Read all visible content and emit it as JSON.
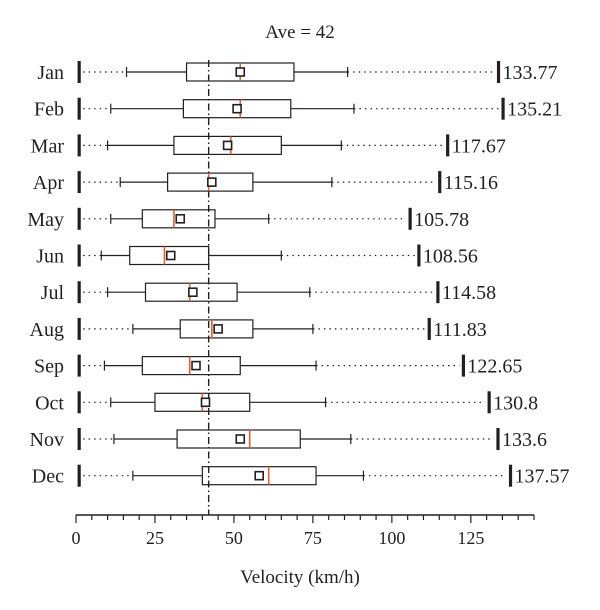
{
  "chart_data": {
    "type": "box",
    "title": "Ave = 42",
    "xlabel": "Velocity (km/h)",
    "xlim": [
      0,
      145
    ],
    "xticks": [
      0,
      25,
      50,
      75,
      100,
      125
    ],
    "reference_line": {
      "value": 42,
      "style": "dash-dot"
    },
    "colors": {
      "median": "#e06030",
      "box": "#231f20"
    },
    "categories": [
      "Jan",
      "Feb",
      "Mar",
      "Apr",
      "May",
      "Jun",
      "Jul",
      "Aug",
      "Sep",
      "Oct",
      "Nov",
      "Dec"
    ],
    "max_labels": [
      "133.77",
      "135.21",
      "117.67",
      "115.16",
      "105.78",
      "108.56",
      "114.58",
      "111.83",
      "122.65",
      "130.8",
      "133.6",
      "137.57"
    ],
    "boxes": [
      {
        "min": 1,
        "p5": 16,
        "q1": 35,
        "median": 52,
        "mean": 52,
        "q3": 69,
        "p95": 86,
        "max": 133.77
      },
      {
        "min": 1,
        "p5": 11,
        "q1": 34,
        "median": 52,
        "mean": 51,
        "q3": 68,
        "p95": 88,
        "max": 135.21
      },
      {
        "min": 1,
        "p5": 10,
        "q1": 31,
        "median": 49,
        "mean": 48,
        "q3": 65,
        "p95": 84,
        "max": 117.67
      },
      {
        "min": 1,
        "p5": 14,
        "q1": 29,
        "median": 42,
        "mean": 43,
        "q3": 56,
        "p95": 81,
        "max": 115.16
      },
      {
        "min": 1,
        "p5": 11,
        "q1": 21,
        "median": 31,
        "mean": 33,
        "q3": 44,
        "p95": 61,
        "max": 105.78
      },
      {
        "min": 1,
        "p5": 8,
        "q1": 17,
        "median": 28,
        "mean": 30,
        "q3": 42,
        "p95": 65,
        "max": 108.56
      },
      {
        "min": 1,
        "p5": 10,
        "q1": 22,
        "median": 36,
        "mean": 37,
        "q3": 51,
        "p95": 74,
        "max": 114.58
      },
      {
        "min": 1,
        "p5": 18,
        "q1": 33,
        "median": 43,
        "mean": 45,
        "q3": 56,
        "p95": 75,
        "max": 111.83
      },
      {
        "min": 1,
        "p5": 9,
        "q1": 21,
        "median": 36,
        "mean": 38,
        "q3": 52,
        "p95": 76,
        "max": 122.65
      },
      {
        "min": 1,
        "p5": 11,
        "q1": 25,
        "median": 40,
        "mean": 41,
        "q3": 55,
        "p95": 79,
        "max": 130.8
      },
      {
        "min": 1,
        "p5": 12,
        "q1": 32,
        "median": 55,
        "mean": 52,
        "q3": 71,
        "p95": 87,
        "max": 133.6
      },
      {
        "min": 1,
        "p5": 18,
        "q1": 40,
        "median": 61,
        "mean": 58,
        "q3": 76,
        "p95": 91,
        "max": 137.57
      }
    ]
  }
}
